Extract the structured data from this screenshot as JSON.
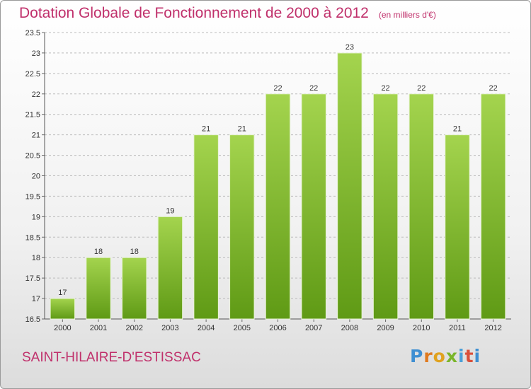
{
  "title": "Dotation Globale de Fonctionnement de 2000 à 2012",
  "subtitle": "(en milliers d'€)",
  "commune": "SAINT-HILAIRE-D'ESTISSAC",
  "logo": {
    "text": "Proxiti",
    "letters": [
      "P",
      "r",
      "o",
      "x",
      "i",
      "t",
      "i"
    ]
  },
  "colors": {
    "title": "#c0306b",
    "bar_light": "#a4d44e",
    "bar_dark": "#5f9a15",
    "grid": "#bbbbbb"
  },
  "chart_data": {
    "type": "bar",
    "categories": [
      "2000",
      "2001",
      "2002",
      "2003",
      "2004",
      "2005",
      "2006",
      "2007",
      "2008",
      "2009",
      "2010",
      "2011",
      "2012"
    ],
    "values": [
      17,
      18,
      18,
      19,
      21,
      21,
      22,
      22,
      23,
      22,
      22,
      21,
      22
    ],
    "data_labels": [
      "17",
      "18",
      "18",
      "19",
      "21",
      "21",
      "22",
      "22",
      "23",
      "22",
      "22",
      "21",
      "22"
    ],
    "ylim": [
      16.5,
      23.5
    ],
    "yticks": [
      16.5,
      17,
      17.5,
      18,
      18.5,
      19,
      19.5,
      20,
      20.5,
      21,
      21.5,
      22,
      22.5,
      23,
      23.5
    ],
    "ytick_labels": [
      "16.5",
      "17",
      "17.5",
      "18",
      "18.5",
      "19",
      "19.5",
      "20",
      "20.5",
      "21",
      "21.5",
      "22",
      "22.5",
      "23",
      "23.5"
    ],
    "grid": true,
    "xlabel": "",
    "ylabel": ""
  }
}
